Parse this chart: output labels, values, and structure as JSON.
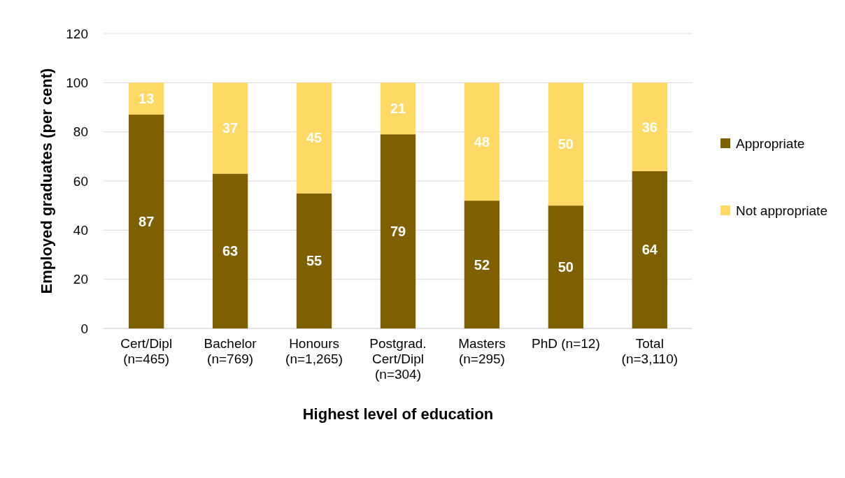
{
  "chart_data": {
    "type": "bar",
    "stacked": true,
    "xlabel": "Highest level of education",
    "ylabel": "Employed graduates (per cent)",
    "categories": [
      "Cert/Dipl\n(n=465)",
      "Bachelor\n(n=769)",
      "Honours\n(n=1,265)",
      "Postgrad.\nCert/Dipl\n(n=304)",
      "Masters\n(n=295)",
      "PhD (n=12)",
      "Total\n(n=3,110)"
    ],
    "series": [
      {
        "name": "Appropriate",
        "color": "#7f6000",
        "values": [
          87,
          63,
          55,
          79,
          52,
          50,
          64
        ]
      },
      {
        "name": "Not appropriate",
        "color": "#ffd966",
        "values": [
          13,
          37,
          45,
          21,
          48,
          50,
          36
        ]
      }
    ],
    "ylim": [
      0,
      120
    ],
    "yticks": [
      0,
      20,
      40,
      60,
      80,
      100,
      120
    ],
    "grid": "y",
    "legend": "right",
    "data_labels": true
  }
}
